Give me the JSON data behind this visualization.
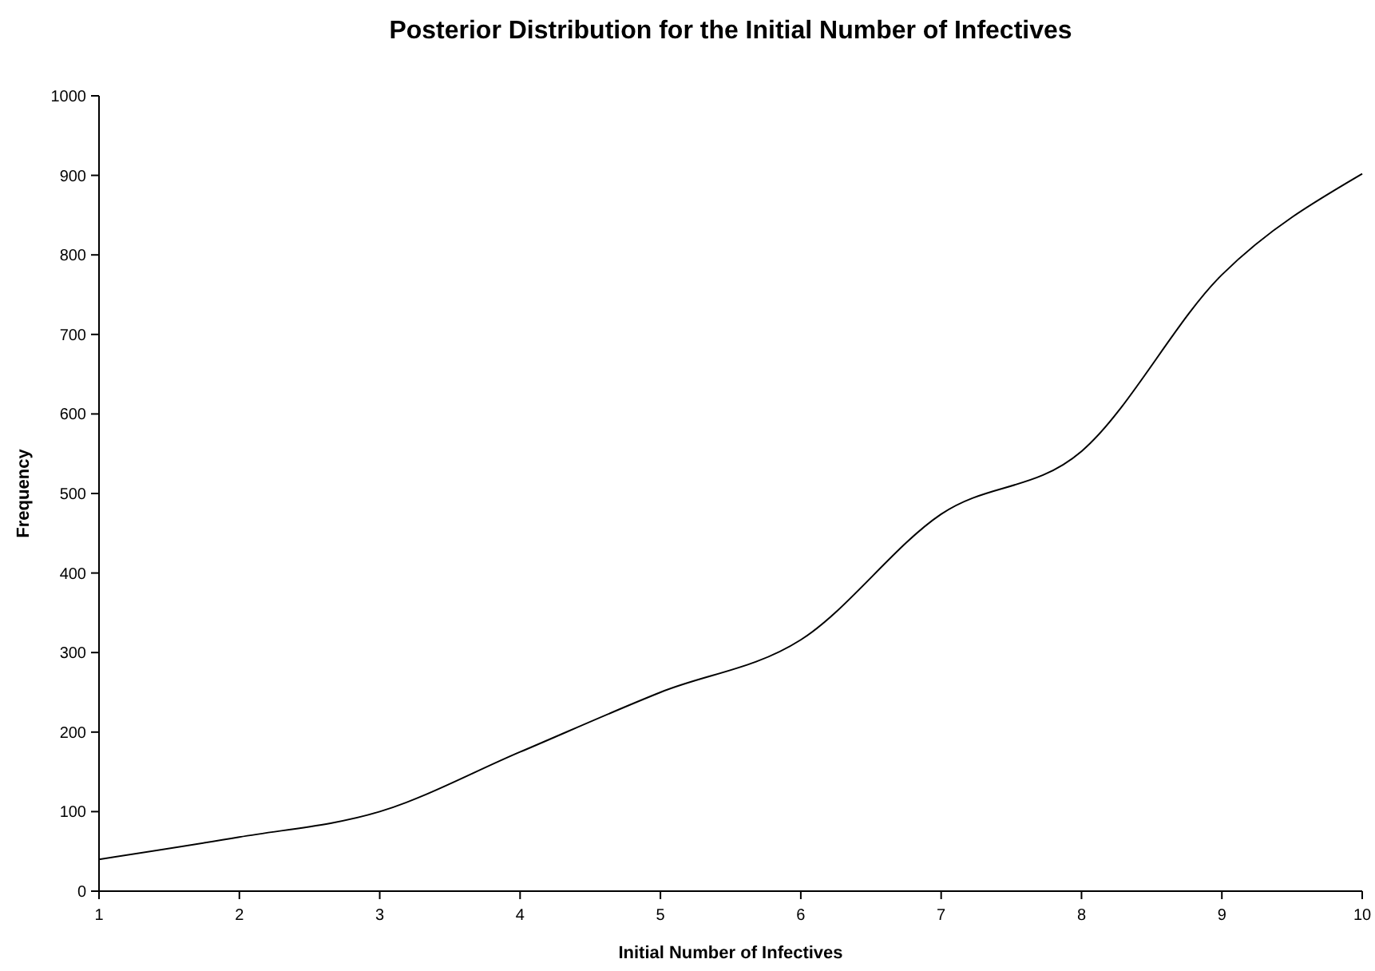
{
  "chart_data": {
    "type": "line",
    "title": "Posterior Distribution for the Initial Number of Infectives",
    "xlabel": "Initial Number of Infectives",
    "ylabel": "Frequency",
    "x": [
      1,
      2,
      3,
      4,
      5,
      6,
      7,
      8,
      9,
      10
    ],
    "series": [
      {
        "color": "#000000",
        "values": [
          40,
          68,
          100,
          175,
          250,
          316,
          474,
          553,
          775,
          902
        ]
      }
    ],
    "xlim": [
      1,
      10
    ],
    "xticks": [
      1,
      2,
      3,
      4,
      5,
      6,
      7,
      8,
      9,
      10
    ],
    "ylim": [
      0,
      1000
    ],
    "yticks": [
      0,
      100,
      200,
      300,
      400,
      500,
      600,
      700,
      800,
      900,
      1000
    ],
    "grid": false,
    "marker": "none",
    "line_style": "solid"
  }
}
